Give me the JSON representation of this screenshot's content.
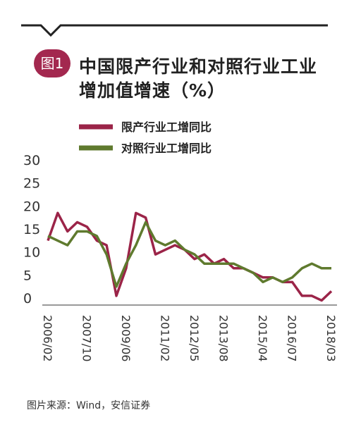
{
  "badge": "图1",
  "source": "图片来源：Wind，安信证券",
  "chart_data": {
    "type": "line",
    "title": "中国限产行业和对照行业工业增加值增速（%）",
    "categories": [
      "2006/02",
      null,
      null,
      null,
      "2007/10",
      null,
      null,
      null,
      "2009/06",
      null,
      null,
      null,
      "2011/02",
      null,
      null,
      "2012/05",
      null,
      null,
      "2013/08",
      null,
      null,
      null,
      "2015/04",
      null,
      null,
      "2016/07",
      null,
      null,
      null,
      "2018/03"
    ],
    "series": [
      {
        "name": "限产行业工增同比",
        "color": "#9b2448",
        "values": [
          14,
          20,
          16,
          18,
          17,
          14,
          13,
          2,
          8,
          20,
          19,
          11,
          12,
          13,
          12,
          10,
          11,
          9,
          10,
          8,
          8,
          7,
          6,
          6,
          5,
          5,
          2,
          2,
          1,
          3
        ]
      },
      {
        "name": "对照行业工增同比",
        "color": "#5f7a2e",
        "values": [
          15,
          14,
          13,
          16,
          16,
          15,
          11,
          4,
          9,
          13,
          18,
          14,
          13,
          14,
          12,
          11,
          9,
          9,
          9,
          9,
          8,
          7,
          5,
          6,
          5,
          6,
          8,
          9,
          8,
          8
        ]
      }
    ],
    "ylim": [
      0,
      30
    ],
    "yticks": [
      0,
      5,
      10,
      15,
      20,
      25,
      30
    ]
  }
}
